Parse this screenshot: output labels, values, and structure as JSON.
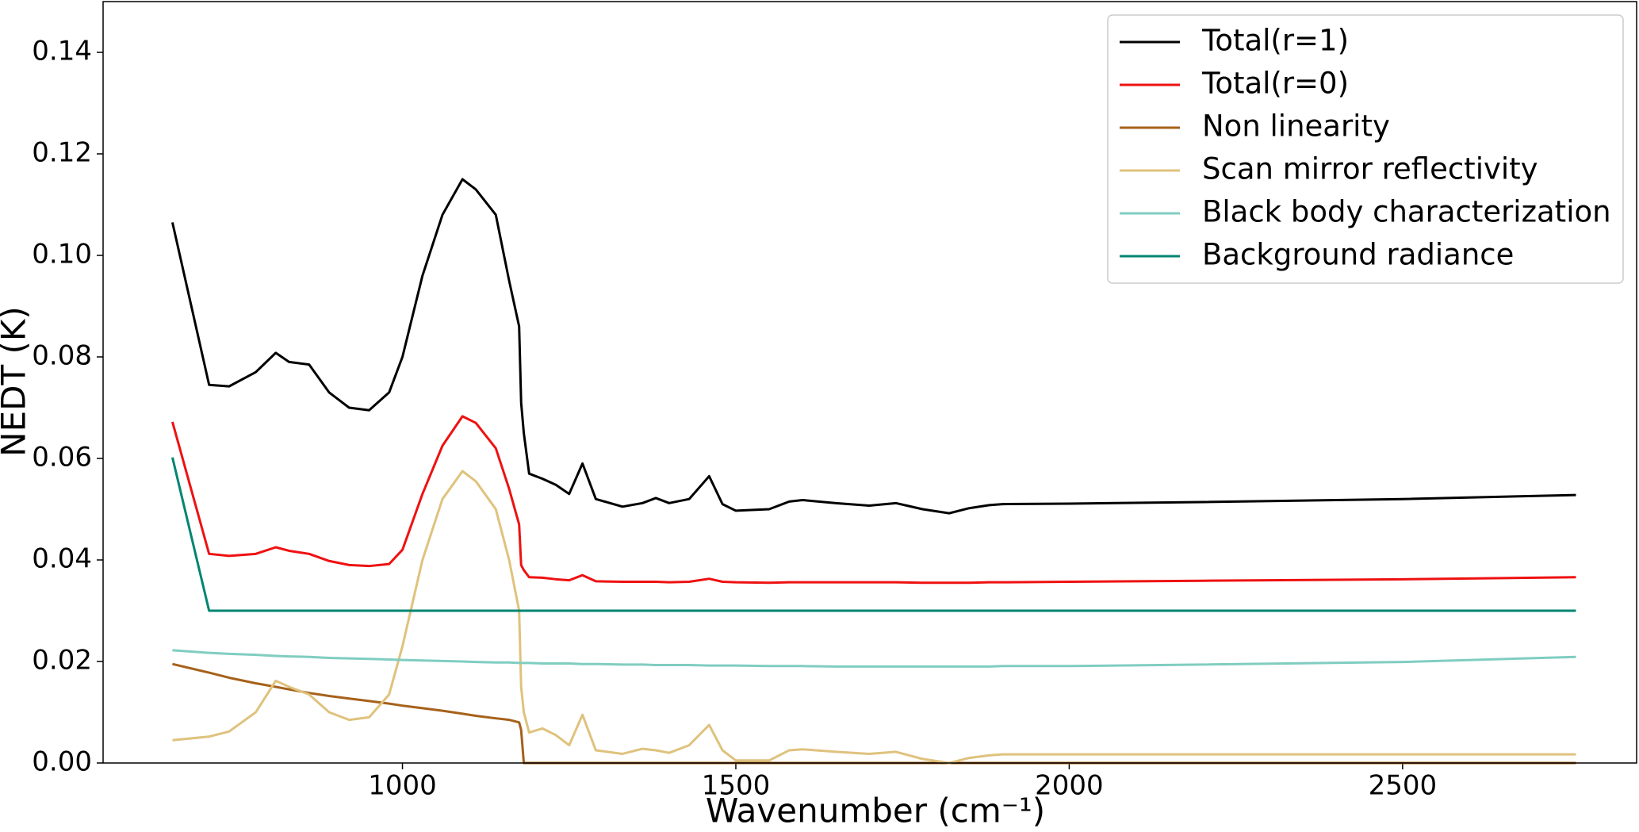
{
  "chart_data": {
    "type": "line",
    "xlabel": "Wavenumber (cm⁻¹)",
    "ylabel": "NEDT (K)",
    "x": [
      655,
      710,
      740,
      780,
      810,
      830,
      860,
      890,
      920,
      950,
      980,
      1000,
      1030,
      1060,
      1090,
      1110,
      1140,
      1160,
      1175,
      1178,
      1182,
      1190,
      1210,
      1230,
      1250,
      1270,
      1290,
      1330,
      1360,
      1380,
      1400,
      1430,
      1460,
      1480,
      1500,
      1550,
      1580,
      1600,
      1650,
      1700,
      1740,
      1780,
      1820,
      1850,
      1880,
      1900,
      2000,
      2200,
      2500,
      2760
    ],
    "series": [
      {
        "name": "Total(r=1)",
        "color": "#000000",
        "values": [
          0.1065,
          0.0745,
          0.0742,
          0.077,
          0.0808,
          0.079,
          0.0785,
          0.073,
          0.07,
          0.0695,
          0.073,
          0.08,
          0.096,
          0.108,
          0.115,
          0.113,
          0.108,
          0.095,
          0.086,
          0.071,
          0.065,
          0.057,
          0.056,
          0.0548,
          0.053,
          0.059,
          0.052,
          0.0505,
          0.0512,
          0.0522,
          0.0512,
          0.052,
          0.0565,
          0.051,
          0.0497,
          0.05,
          0.0515,
          0.0518,
          0.0512,
          0.0507,
          0.0512,
          0.05,
          0.0492,
          0.0502,
          0.0508,
          0.051,
          0.0511,
          0.0514,
          0.052,
          0.0528
        ]
      },
      {
        "name": "Total(r=0)",
        "color": "#ee1111",
        "values": [
          0.0672,
          0.0412,
          0.0408,
          0.0412,
          0.0425,
          0.0418,
          0.0412,
          0.0398,
          0.039,
          0.0388,
          0.0392,
          0.042,
          0.053,
          0.0625,
          0.0683,
          0.067,
          0.062,
          0.054,
          0.047,
          0.039,
          0.038,
          0.0366,
          0.0365,
          0.0362,
          0.036,
          0.037,
          0.0358,
          0.0357,
          0.0357,
          0.0357,
          0.0356,
          0.0357,
          0.0363,
          0.0357,
          0.0356,
          0.0355,
          0.0356,
          0.0356,
          0.0356,
          0.0356,
          0.0356,
          0.0355,
          0.0355,
          0.0355,
          0.0356,
          0.0356,
          0.0357,
          0.0359,
          0.0362,
          0.0366
        ]
      },
      {
        "name": "Non linearity",
        "color": "#a6611a",
        "values": [
          0.0195,
          0.0178,
          0.0168,
          0.0157,
          0.015,
          0.0145,
          0.0138,
          0.0132,
          0.0127,
          0.0122,
          0.0117,
          0.0113,
          0.0108,
          0.0103,
          0.0097,
          0.0093,
          0.0088,
          0.0085,
          0.008,
          0.0065,
          0,
          0,
          0,
          0,
          0,
          0,
          0,
          0,
          0,
          0,
          0,
          0,
          0,
          0,
          0,
          0,
          0,
          0,
          0,
          0,
          0,
          0,
          0,
          0,
          0,
          0,
          0,
          0,
          0,
          0
        ]
      },
      {
        "name": "Scan mirror reflectivity",
        "color": "#dfc27d",
        "values": [
          0.0045,
          0.0052,
          0.0062,
          0.01,
          0.0162,
          0.015,
          0.0135,
          0.01,
          0.0085,
          0.009,
          0.0135,
          0.023,
          0.04,
          0.052,
          0.0575,
          0.0555,
          0.05,
          0.04,
          0.03,
          0.015,
          0.01,
          0.006,
          0.0068,
          0.0055,
          0.0035,
          0.0095,
          0.0025,
          0.0018,
          0.0028,
          0.0025,
          0.002,
          0.0035,
          0.0075,
          0.0025,
          0.0005,
          0.0005,
          0.0025,
          0.0027,
          0.0022,
          0.0018,
          0.0022,
          0.0008,
          0,
          0.001,
          0.0015,
          0.0017,
          0.0017,
          0.0017,
          0.0017,
          0.0017
        ]
      },
      {
        "name": "Black body characterization",
        "color": "#80cdc1",
        "values": [
          0.0222,
          0.0217,
          0.0215,
          0.0213,
          0.0211,
          0.021,
          0.0209,
          0.0207,
          0.0206,
          0.0205,
          0.0204,
          0.0203,
          0.0202,
          0.0201,
          0.02,
          0.0199,
          0.0198,
          0.0198,
          0.0197,
          0.0197,
          0.0197,
          0.0197,
          0.0196,
          0.0196,
          0.0196,
          0.0195,
          0.0195,
          0.0194,
          0.0194,
          0.0193,
          0.0193,
          0.0193,
          0.0192,
          0.0192,
          0.0192,
          0.0191,
          0.0191,
          0.0191,
          0.019,
          0.019,
          0.019,
          0.019,
          0.019,
          0.019,
          0.019,
          0.0191,
          0.0191,
          0.0194,
          0.0199,
          0.0209
        ]
      },
      {
        "name": "Background radiance",
        "color": "#018571",
        "values": [
          0.0602,
          0.03,
          0.03,
          0.03,
          0.03,
          0.03,
          0.03,
          0.03,
          0.03,
          0.03,
          0.03,
          0.03,
          0.03,
          0.03,
          0.03,
          0.03,
          0.03,
          0.03,
          0.03,
          0.03,
          0.03,
          0.03,
          0.03,
          0.03,
          0.03,
          0.03,
          0.03,
          0.03,
          0.03,
          0.03,
          0.03,
          0.03,
          0.03,
          0.03,
          0.03,
          0.03,
          0.03,
          0.03,
          0.03,
          0.03,
          0.03,
          0.03,
          0.03,
          0.03,
          0.03,
          0.03,
          0.03,
          0.03,
          0.03,
          0.03
        ]
      }
    ],
    "xlim": [
      551,
      2851
    ],
    "ylim": [
      0,
      0.15
    ],
    "xticks": [
      1000,
      1500,
      2000,
      2500
    ],
    "yticks": [
      {
        "value": 0,
        "label": "0.00"
      },
      {
        "value": 0.02,
        "label": "0.02"
      },
      {
        "value": 0.04,
        "label": "0.04"
      },
      {
        "value": 0.06,
        "label": "0.06"
      },
      {
        "value": 0.08,
        "label": "0.08"
      },
      {
        "value": 0.1,
        "label": "0.10"
      },
      {
        "value": 0.12,
        "label": "0.12"
      },
      {
        "value": 0.14,
        "label": "0.14"
      }
    ],
    "legend": "upper right"
  }
}
